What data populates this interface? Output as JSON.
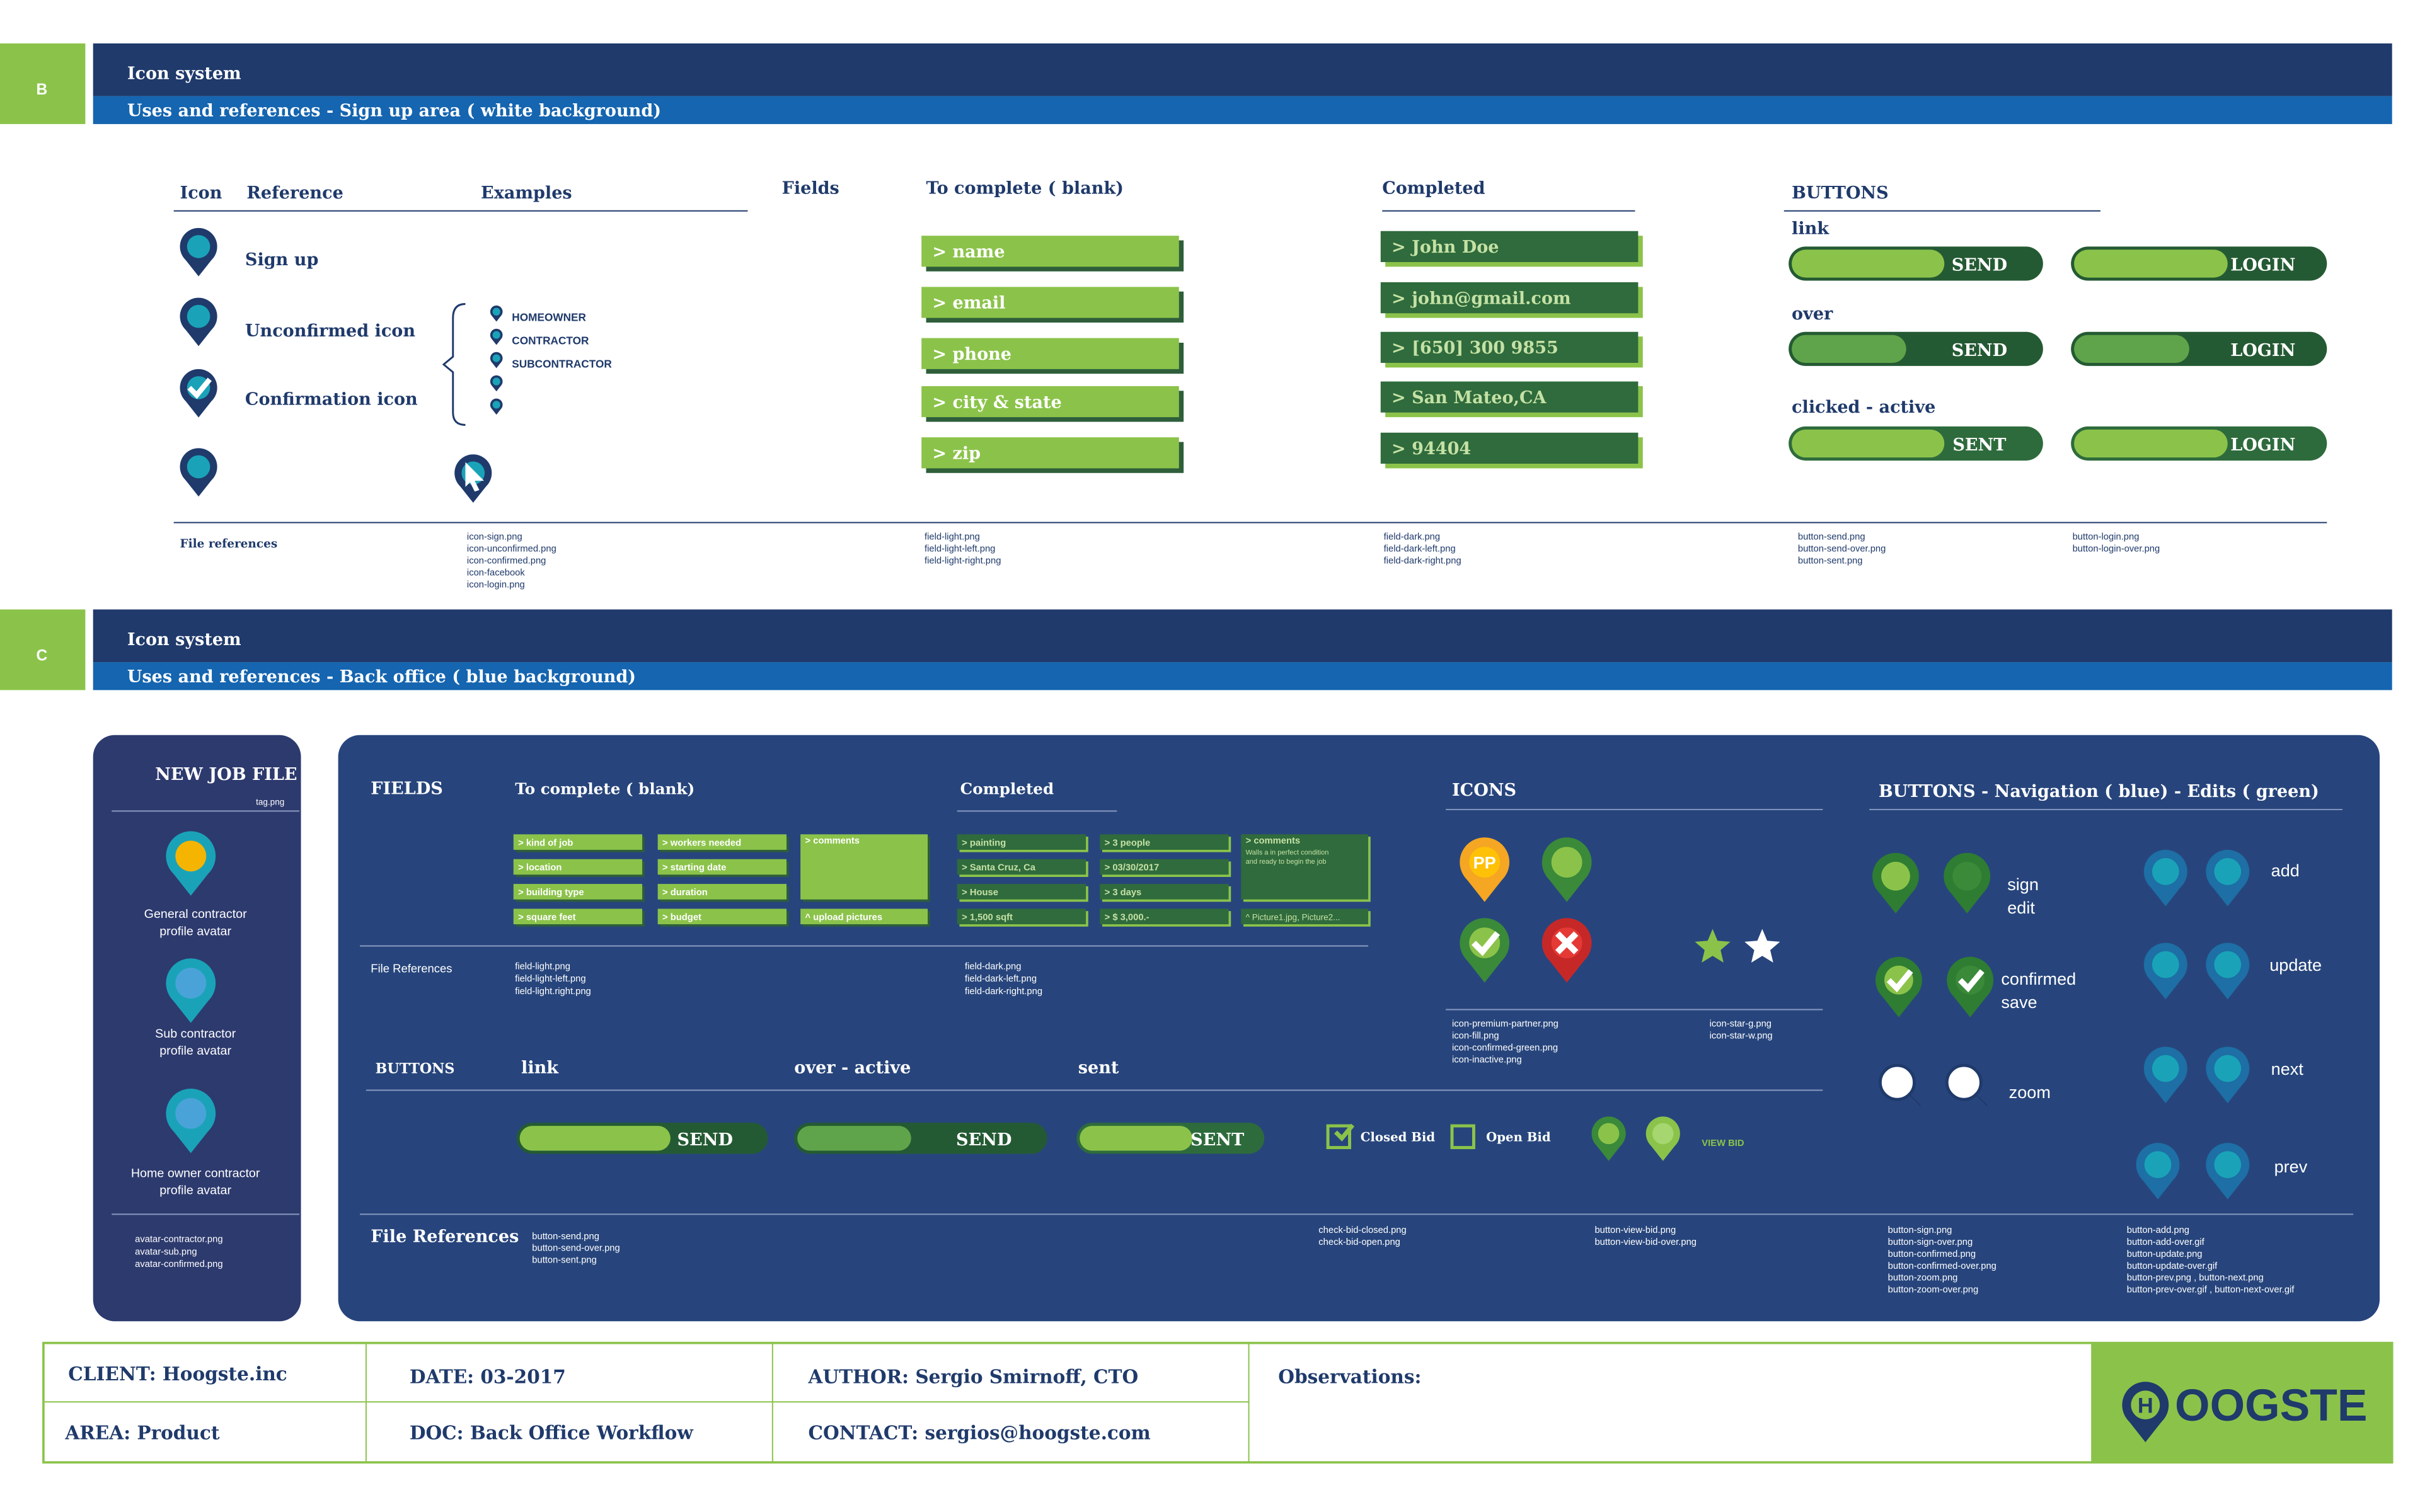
{
  "section_b": {
    "label": "B",
    "title": "Icon system",
    "subtitle": "Uses and references - Sign up area ( white background)",
    "headers": {
      "icon": "Icon",
      "reference": "Reference",
      "examples": "Examples",
      "fields": "Fields",
      "to_complete": "To complete ( blank)",
      "completed": "Completed",
      "buttons": "BUTTONS"
    },
    "references": [
      "Sign up",
      "Unconfirmed icon",
      "Confirmation icon"
    ],
    "examples": [
      "HOMEOWNER",
      "CONTRACTOR",
      "SUBCONTRACTOR"
    ],
    "blank_fields": [
      "> name",
      "> email",
      "> phone",
      "> city & state",
      "> zip"
    ],
    "completed_fields": [
      "> John Doe",
      "> john@gmail.com",
      "> [650] 300 9855",
      "> San Mateo,CA",
      "> 94404"
    ],
    "button_states": [
      {
        "label": "link",
        "buttons": [
          "SEND",
          "LOGIN"
        ]
      },
      {
        "label": "over",
        "buttons": [
          "SEND",
          "LOGIN"
        ]
      },
      {
        "label": "clicked - active",
        "buttons": [
          "SENT",
          "LOGIN"
        ]
      }
    ],
    "file_references_label": "File references",
    "file_references": [
      [
        "icon-sign.png",
        "icon-unconfirmed.png",
        "icon-confirmed.png",
        "icon-facebook",
        "icon-login.png"
      ],
      [
        "field-light.png",
        "field-light-left.png",
        "field-light-right.png"
      ],
      [
        "field-dark.png",
        "field-dark-left.png",
        "field-dark-right.png"
      ],
      [
        "button-send.png",
        "button-send-over.png",
        "button-sent.png"
      ],
      [
        "button-login.png",
        "button-login-over.png"
      ]
    ]
  },
  "section_c": {
    "label": "C",
    "title": "Icon system",
    "subtitle": "Uses and references - Back office ( blue background)",
    "side_panel": {
      "title": "NEW JOB FILE",
      "tag": "tag.png",
      "avatars": [
        [
          "General contractor",
          "profile avatar"
        ],
        [
          "Sub contractor",
          "profile avatar"
        ],
        [
          "Home owner contractor",
          "profile avatar"
        ]
      ],
      "files": [
        "avatar-contractor.png",
        "avatar-sub.png",
        "avatar-confirmed.png"
      ]
    },
    "fields": {
      "heading": "FIELDS",
      "to_complete": "To complete ( blank)",
      "completed": "Completed",
      "blank": [
        [
          "> kind of job",
          "> location",
          "> building type",
          "> square feet"
        ],
        [
          "> workers needed",
          "> starting date",
          "> duration",
          "> budget"
        ]
      ],
      "comments": "> comments",
      "upload": "^ upload pictures",
      "filled": [
        [
          "> painting",
          "> Santa Cruz, Ca",
          "> House",
          "> 1,500 sqft"
        ],
        [
          "> 3 people",
          "> 03/30/2017",
          "> 3 days",
          "> $ 3,000.-"
        ]
      ],
      "filled_comments": "> comments",
      "filled_comments_text": [
        "Walls a in perfect condition",
        "and ready to begin the job"
      ],
      "pictures": "^ Picture1.jpg, Picture2...",
      "file_references_label": "File References",
      "file_references": [
        [
          "field-light.png",
          "field-light-left.png",
          "field-light.right.png"
        ],
        [
          "field-dark.png",
          "field-dark-left.png",
          "field-dark-right.png"
        ]
      ]
    },
    "icons": {
      "heading": "ICONS",
      "pp": "PP",
      "file_references": [
        [
          "icon-premium-partner.png",
          "icon-fill.png",
          "icon-confirmed-green.png",
          "icon-inactive.png"
        ],
        [
          "icon-star-g.png",
          "icon-star-w.png"
        ]
      ]
    },
    "buttons": {
      "heading": "BUTTONS",
      "states": [
        "link",
        "over - active",
        "sent"
      ],
      "labels": [
        "SEND",
        "SEND",
        "SENT"
      ],
      "closed_bid": "Closed Bid",
      "open_bid": "Open Bid",
      "view_bid": "VIEW BID",
      "file_references_label": "File References",
      "file_references": [
        [
          "button-send.png",
          "button-send-over.png",
          "button-sent.png"
        ],
        [
          "check-bid-closed.png",
          "check-bid-open.png"
        ],
        [
          "button-view-bid.png",
          "button-view-bid-over.png"
        ],
        [
          "button-sign.png",
          "button-sign-over.png",
          "button-confirmed.png",
          "button-confirmed-over.png",
          "button-zoom.png",
          "button-zoom-over.png"
        ],
        [
          "button-add.png",
          "button-add-over.gif",
          "button-update.png",
          "button-update-over.gif",
          "button-prev.png , button-next.png",
          "button-prev-over.gif , button-next-over.gif"
        ]
      ]
    },
    "navigation": {
      "heading": "BUTTONS - Navigation ( blue) - Edits ( green)",
      "labels": [
        [
          "sign",
          "edit"
        ],
        [
          "confirmed",
          "save"
        ],
        [
          "zoom"
        ],
        [
          "add"
        ],
        [
          "update"
        ],
        [
          "next"
        ],
        [
          "prev"
        ]
      ]
    }
  },
  "footer": {
    "client": "CLIENT: Hoogste.inc",
    "area": "AREA: Product",
    "date": "DATE: 03-2017",
    "doc": "DOC: Back Office Workflow",
    "author": "AUTHOR: Sergio Smirnoff, CTO",
    "contact": "CONTACT: sergios@hoogste.com",
    "observations": "Observations:",
    "logo_mark": "H",
    "logo": "OOGSTE"
  }
}
